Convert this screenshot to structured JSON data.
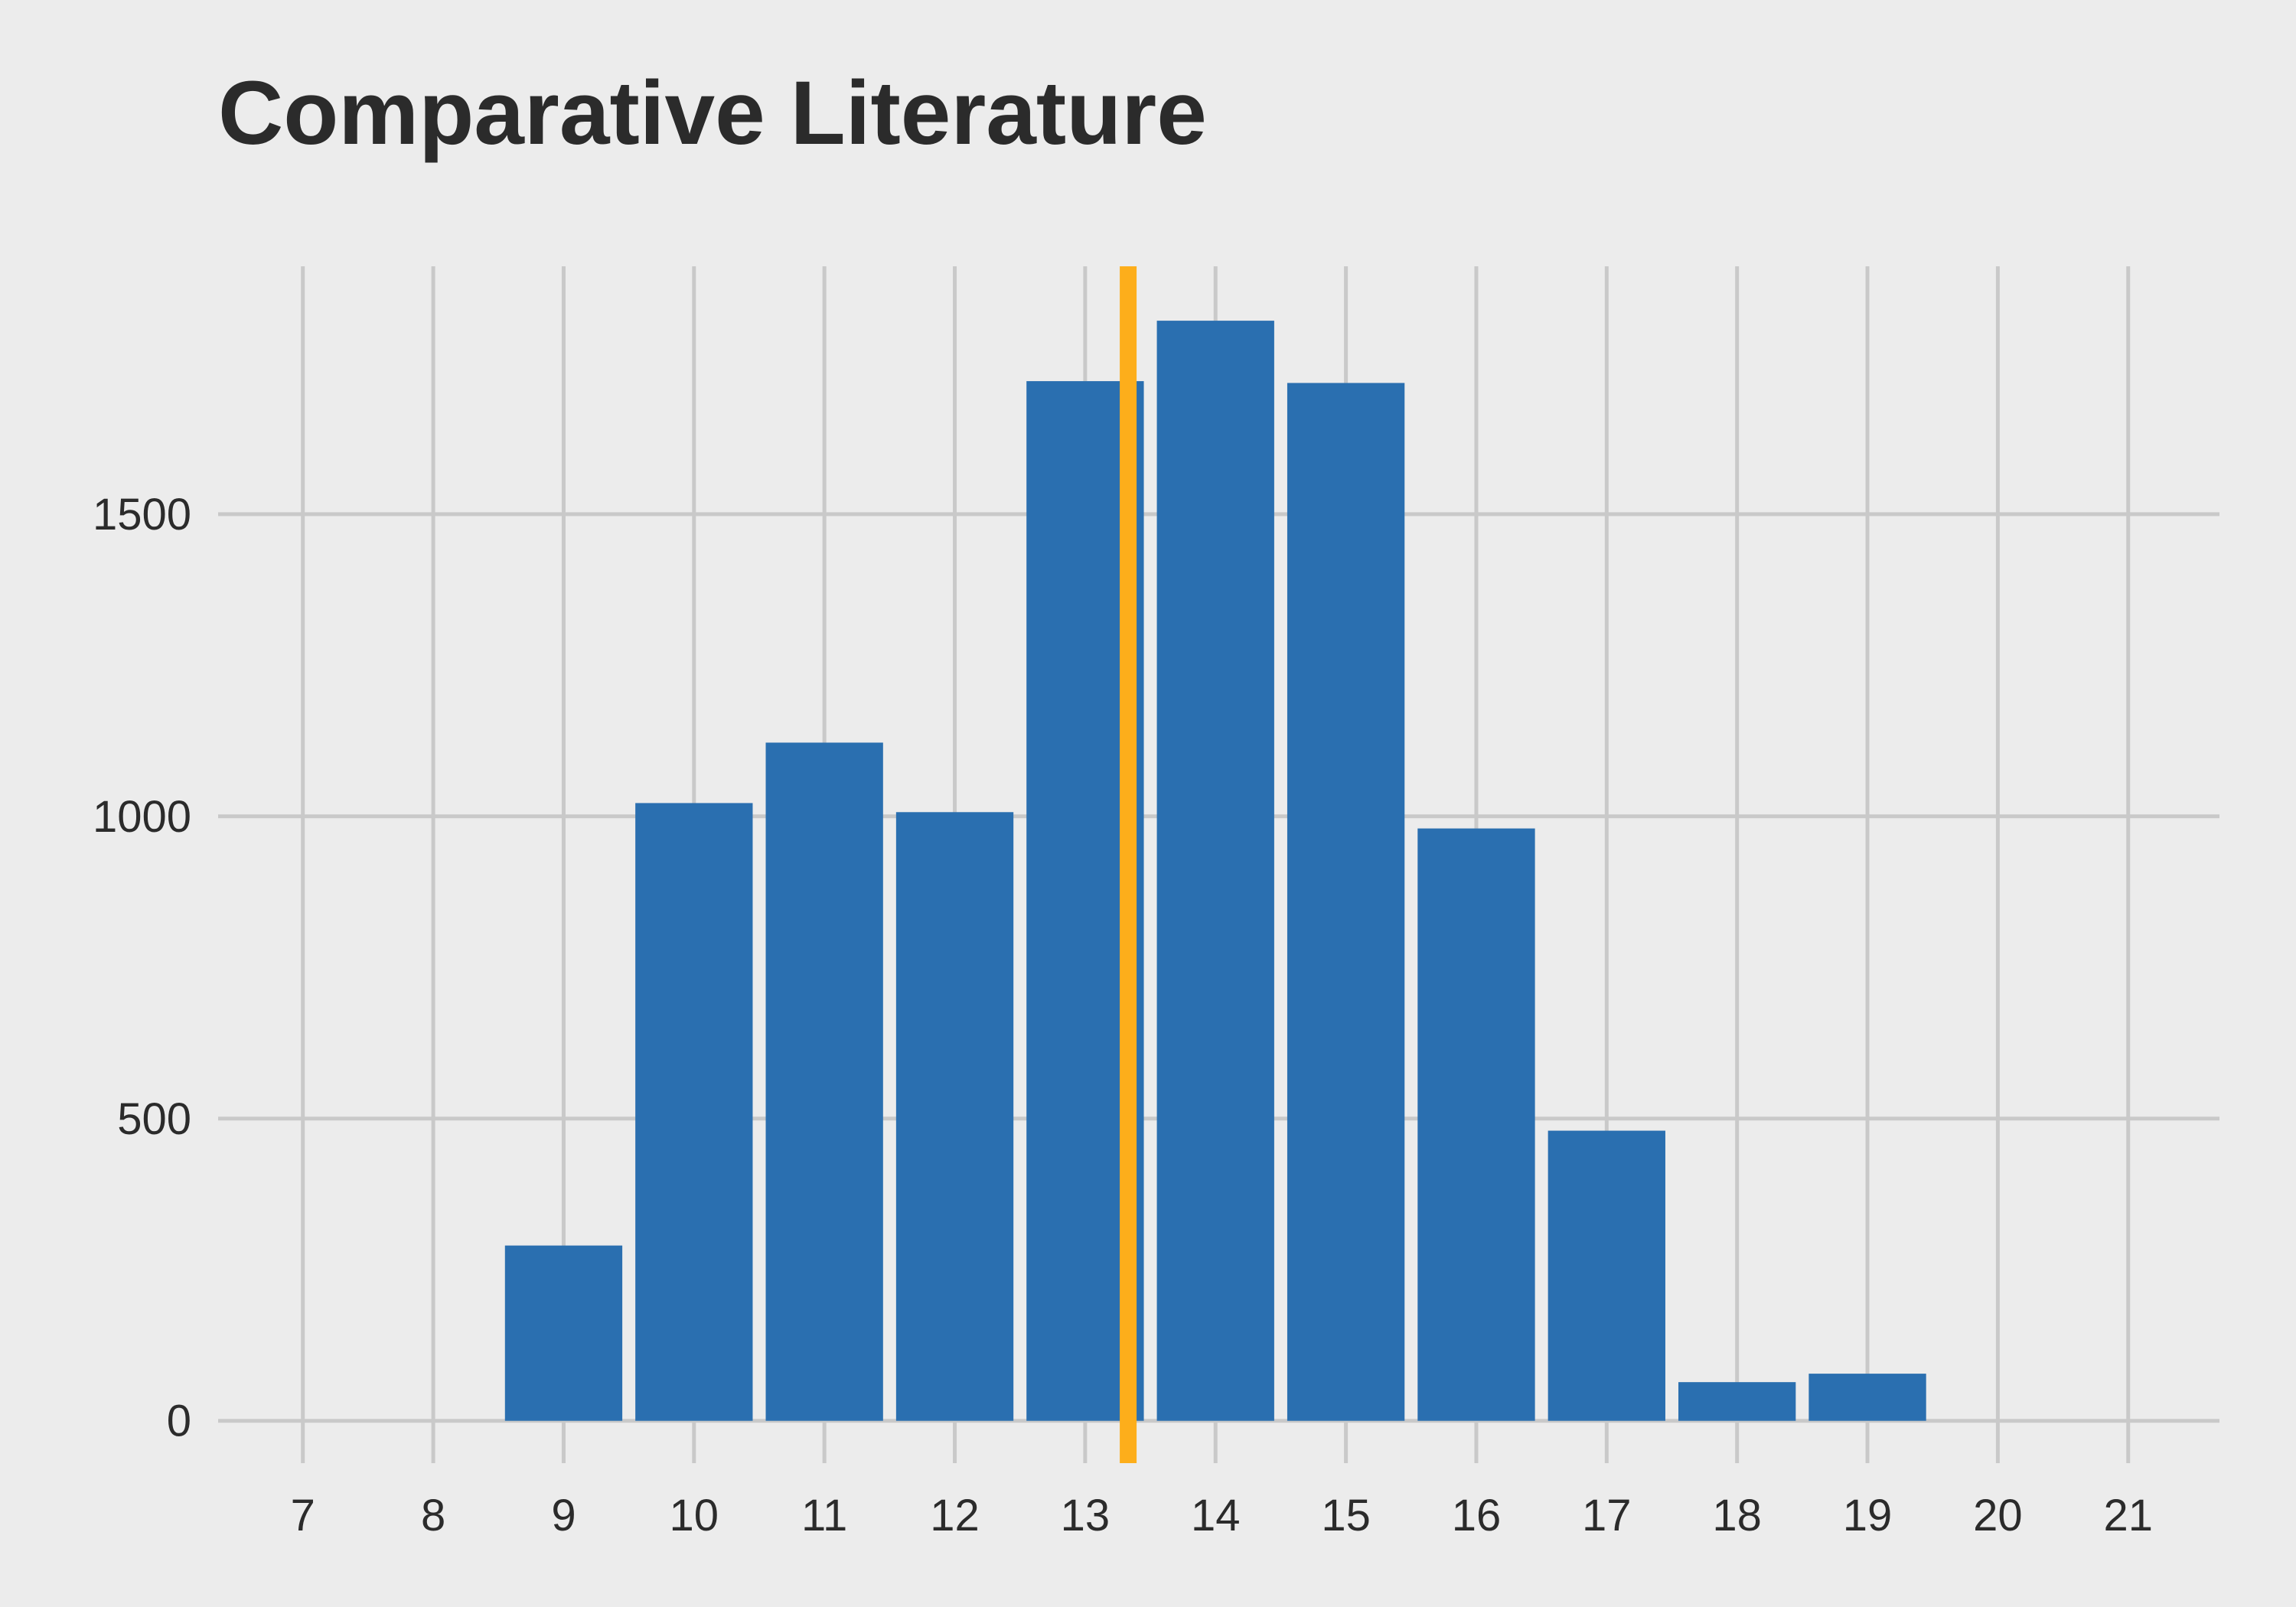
{
  "chart_data": {
    "type": "bar",
    "title": "Comparative Literature",
    "xlabel": "",
    "ylabel": "",
    "categories": [
      "7",
      "8",
      "9",
      "10",
      "11",
      "12",
      "13",
      "14",
      "15",
      "16",
      "17",
      "18",
      "19",
      "20",
      "21"
    ],
    "values": [
      0,
      0,
      290,
      1022,
      1122,
      1007,
      1720,
      1820,
      1717,
      980,
      480,
      64,
      78,
      0,
      0
    ],
    "x_ticks": [
      "7",
      "8",
      "9",
      "10",
      "11",
      "12",
      "13",
      "14",
      "15",
      "16",
      "17",
      "18",
      "19",
      "20",
      "21"
    ],
    "y_ticks": [
      0,
      500,
      1000,
      1500
    ],
    "xlim": [
      6.35,
      21.7
    ],
    "ylim": [
      -70,
      1910
    ],
    "reference_line": {
      "x": 13.33,
      "color": "#fdae1b"
    },
    "grid": true,
    "legend": "none",
    "colors": {
      "bar": "#2a6fb0",
      "grid": "#c9c9c9",
      "background": "#ececec",
      "text": "#2b2b2b"
    }
  }
}
